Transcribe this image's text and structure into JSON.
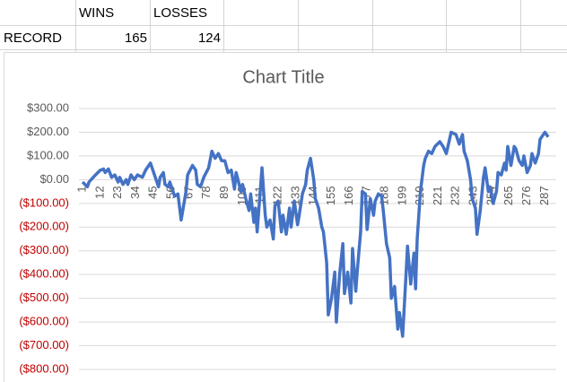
{
  "sheet": {
    "headers": [
      "WINS",
      "LOSSES"
    ],
    "rows": [
      {
        "label": "RECORD",
        "values": [
          165,
          124
        ]
      }
    ]
  },
  "chart_data": {
    "type": "line",
    "title": "Chart Title",
    "x": [
      1,
      4,
      5,
      9,
      12,
      14,
      15,
      17,
      19,
      21,
      23,
      24,
      26,
      28,
      29,
      31,
      33,
      35,
      38,
      40,
      43,
      44,
      46,
      48,
      49,
      51,
      52,
      54,
      55,
      58,
      60,
      62,
      65,
      66,
      69,
      71,
      72,
      74,
      76,
      79,
      81,
      83,
      85,
      87,
      89,
      91,
      93,
      95,
      96,
      99,
      100,
      102,
      104,
      105,
      107,
      108,
      109,
      111,
      112,
      114,
      115,
      117,
      119,
      120,
      122,
      124,
      125,
      127,
      129,
      130,
      132,
      134,
      135,
      137,
      139,
      140,
      142,
      144,
      145,
      147,
      149,
      150,
      152,
      153,
      155,
      157,
      158,
      160,
      162,
      163,
      165,
      167,
      168,
      170,
      171,
      173,
      174,
      176,
      177,
      179,
      181,
      182,
      184,
      186,
      187,
      189,
      191,
      192,
      194,
      196,
      197,
      199,
      201,
      202,
      204,
      206,
      207,
      208,
      210,
      212,
      213,
      215,
      217,
      219,
      222,
      224,
      226,
      227,
      229,
      232,
      234,
      236,
      237,
      239,
      241,
      242,
      244,
      245,
      247,
      249,
      250,
      252,
      253,
      255,
      257,
      258,
      260,
      262,
      263,
      264,
      266,
      268,
      269,
      271,
      273,
      274,
      276,
      278,
      279,
      281,
      283,
      284,
      287,
      289
    ],
    "series": [
      {
        "color": "#4472c4",
        "values": [
          -10,
          -30,
          -10,
          20,
          40,
          45,
          30,
          45,
          10,
          20,
          -10,
          10,
          -20,
          0,
          -20,
          20,
          0,
          20,
          10,
          40,
          70,
          50,
          10,
          -30,
          10,
          30,
          -20,
          -30,
          -10,
          -70,
          -60,
          -170,
          -50,
          20,
          60,
          40,
          -20,
          -30,
          10,
          50,
          120,
          90,
          110,
          80,
          80,
          30,
          40,
          -40,
          30,
          -50,
          -20,
          -80,
          -130,
          -60,
          -180,
          -120,
          -220,
          -40,
          50,
          -150,
          -200,
          -170,
          -250,
          -110,
          -90,
          -220,
          -150,
          -230,
          -120,
          -200,
          -90,
          -190,
          -150,
          -60,
          -20,
          40,
          90,
          0,
          -80,
          -120,
          -200,
          -220,
          -350,
          -570,
          -500,
          -390,
          -600,
          -400,
          -270,
          -480,
          -390,
          -520,
          -290,
          -470,
          -380,
          -220,
          -50,
          -60,
          -210,
          -80,
          -150,
          -90,
          -60,
          -70,
          -130,
          -270,
          -330,
          -500,
          -450,
          -630,
          -560,
          -660,
          -410,
          -280,
          -440,
          -310,
          -460,
          -250,
          -50,
          60,
          90,
          120,
          110,
          140,
          160,
          140,
          110,
          140,
          200,
          190,
          150,
          190,
          120,
          80,
          0,
          -80,
          -120,
          -230,
          -130,
          10,
          50,
          -50,
          -30,
          -100,
          -50,
          30,
          20,
          70,
          40,
          140,
          60,
          140,
          130,
          80,
          60,
          100,
          30,
          60,
          110,
          70,
          110,
          170,
          200,
          180
        ]
      }
    ],
    "xlim": [
      1,
      289
    ],
    "xticks": [
      1,
      12,
      23,
      34,
      45,
      56,
      67,
      78,
      89,
      100,
      111,
      122,
      133,
      144,
      155,
      166,
      177,
      188,
      199,
      210,
      221,
      232,
      243,
      254,
      265,
      276,
      287
    ],
    "ylim": [
      -800,
      300
    ],
    "yticks": [
      {
        "value": 300,
        "label": "$300.00"
      },
      {
        "value": 200,
        "label": "$200.00"
      },
      {
        "value": 100,
        "label": "$100.00"
      },
      {
        "value": 0,
        "label": "$0.00"
      },
      {
        "value": -100,
        "label": "($100.00)"
      },
      {
        "value": -200,
        "label": "($200.00)"
      },
      {
        "value": -300,
        "label": "($300.00)"
      },
      {
        "value": -400,
        "label": "($400.00)"
      },
      {
        "value": -500,
        "label": "($500.00)"
      },
      {
        "value": -600,
        "label": "($600.00)"
      },
      {
        "value": -700,
        "label": "($700.00)"
      },
      {
        "value": -800,
        "label": "($800.00)"
      }
    ],
    "negative_tick_color": "#c00000",
    "grid": true
  }
}
